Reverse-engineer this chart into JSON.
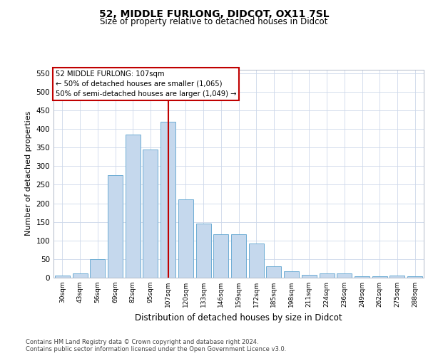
{
  "title1": "52, MIDDLE FURLONG, DIDCOT, OX11 7SL",
  "title2": "Size of property relative to detached houses in Didcot",
  "xlabel": "Distribution of detached houses by size in Didcot",
  "ylabel": "Number of detached properties",
  "categories": [
    "30sqm",
    "43sqm",
    "56sqm",
    "69sqm",
    "82sqm",
    "95sqm",
    "107sqm",
    "120sqm",
    "133sqm",
    "146sqm",
    "159sqm",
    "172sqm",
    "185sqm",
    "198sqm",
    "211sqm",
    "224sqm",
    "236sqm",
    "249sqm",
    "262sqm",
    "275sqm",
    "288sqm"
  ],
  "values": [
    5,
    12,
    50,
    275,
    385,
    345,
    420,
    210,
    145,
    117,
    117,
    92,
    30,
    17,
    8,
    12,
    12,
    3,
    3,
    5,
    3
  ],
  "bar_color": "#c5d8ed",
  "bar_edge_color": "#6eadd4",
  "highlight_index": 6,
  "highlight_color": "#c00000",
  "annotation_text": "52 MIDDLE FURLONG: 107sqm\n← 50% of detached houses are smaller (1,065)\n50% of semi-detached houses are larger (1,049) →",
  "annotation_box_color": "#ffffff",
  "annotation_box_edge_color": "#c00000",
  "ylim": [
    0,
    560
  ],
  "yticks": [
    0,
    50,
    100,
    150,
    200,
    250,
    300,
    350,
    400,
    450,
    500,
    550
  ],
  "footer1": "Contains HM Land Registry data © Crown copyright and database right 2024.",
  "footer2": "Contains public sector information licensed under the Open Government Licence v3.0.",
  "bg_color": "#ffffff",
  "grid_color": "#cdd8ea"
}
